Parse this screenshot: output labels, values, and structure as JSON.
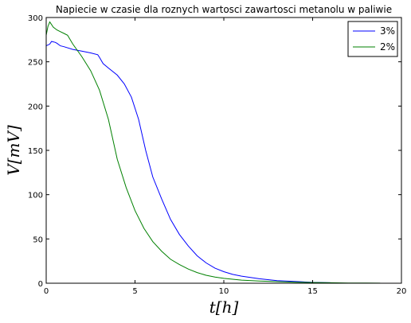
{
  "chart_data": {
    "type": "line",
    "title": "Napiecie w czasie dla roznych wartosci zawartosci metanolu w paliwie",
    "xlabel": "t[h]",
    "ylabel": "V[mV]",
    "xlim": [
      0,
      20
    ],
    "ylim": [
      0,
      300
    ],
    "xticks": [
      0,
      5,
      10,
      15,
      20
    ],
    "yticks": [
      0,
      50,
      100,
      150,
      200,
      250,
      300
    ],
    "grid": false,
    "legend": "top-right",
    "series": [
      {
        "name": "3%",
        "color": "#0000ff",
        "x": [
          0,
          0.2,
          0.3,
          0.5,
          0.6,
          0.8,
          1.0,
          1.5,
          2.0,
          2.5,
          2.9,
          3.0,
          3.2,
          3.5,
          4.0,
          4.4,
          4.8,
          5.2,
          5.6,
          6.0,
          6.5,
          7.0,
          7.5,
          8.0,
          8.5,
          9.0,
          9.5,
          10.0,
          10.5,
          11.0,
          12.0,
          13.0,
          14.0,
          15.0,
          16.0
        ],
        "y": [
          268,
          270,
          273,
          272,
          271,
          268,
          267,
          264,
          262,
          260,
          258,
          255,
          248,
          243,
          235,
          225,
          210,
          185,
          150,
          120,
          95,
          72,
          55,
          42,
          31,
          23,
          17,
          13,
          10,
          8,
          5,
          3,
          2,
          1,
          0.5
        ]
      },
      {
        "name": "2%",
        "color": "#008000",
        "x": [
          0,
          0.1,
          0.2,
          0.4,
          0.6,
          0.8,
          1.0,
          1.2,
          1.5,
          2.0,
          2.5,
          3.0,
          3.5,
          4.0,
          4.5,
          5.0,
          5.5,
          6.0,
          6.5,
          7.0,
          7.5,
          8.0,
          8.5,
          9.0,
          9.5,
          10.0,
          11.0,
          12.0,
          13.0,
          14.0,
          15.0,
          16.0,
          17.0,
          18.0,
          18.8
        ],
        "y": [
          280,
          290,
          295,
          289,
          286,
          284,
          282,
          280,
          270,
          256,
          240,
          218,
          185,
          140,
          108,
          82,
          62,
          47,
          36,
          27,
          21,
          16,
          12,
          9,
          7,
          5.5,
          3.5,
          2.5,
          1.8,
          1.2,
          0.8,
          0.5,
          0.3,
          0.2,
          0.1
        ]
      }
    ]
  }
}
